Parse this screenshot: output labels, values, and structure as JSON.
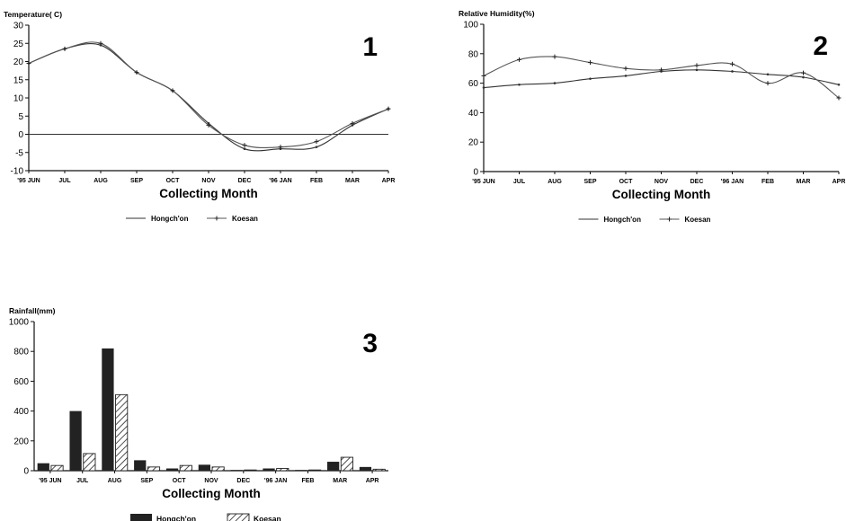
{
  "chart_data": [
    {
      "type": "line",
      "panel_number": "1",
      "title": "Temperature( C)",
      "xlabel": "Collecting Month",
      "ylabel": "",
      "x_ticks": [
        "'95 JUN",
        "JUL",
        "AUG",
        "SEP",
        "OCT",
        "NOV",
        "DEC",
        "'96 JAN",
        "FEB",
        "MAR",
        "APR"
      ],
      "y_ticks": [
        -10,
        -5,
        0,
        5,
        10,
        15,
        20,
        25,
        30
      ],
      "ylim": [
        -10,
        30
      ],
      "grid": false,
      "reference_line": 0,
      "legend_position": "bottom",
      "series": [
        {
          "name": "Hongch'on",
          "values": [
            19.5,
            23.5,
            24.5,
            17.0,
            12.0,
            3.0,
            -4.0,
            -4.0,
            -3.5,
            2.5,
            7.0
          ]
        },
        {
          "name": "Koesan",
          "values": [
            19.5,
            23.5,
            25.0,
            17.0,
            12.0,
            2.5,
            -3.0,
            -3.5,
            -2.0,
            3.0,
            7.0
          ]
        }
      ]
    },
    {
      "type": "line",
      "panel_number": "2",
      "title": "Relative Humidity(%)",
      "xlabel": "Collecting Month",
      "ylabel": "",
      "x_ticks": [
        "'95 JUN",
        "JUL",
        "AUG",
        "SEP",
        "OCT",
        "NOV",
        "DEC",
        "'96 JAN",
        "FEB",
        "MAR",
        "APR"
      ],
      "y_ticks": [
        0,
        20,
        40,
        60,
        80,
        100
      ],
      "ylim": [
        0,
        100
      ],
      "grid": false,
      "legend_position": "bottom",
      "series": [
        {
          "name": "Hongch'on",
          "values": [
            57,
            59,
            60,
            63,
            65,
            68,
            69,
            68,
            66,
            64,
            59
          ]
        },
        {
          "name": "Koesan",
          "values": [
            65,
            76,
            78,
            74,
            70,
            69,
            72,
            73,
            60,
            67,
            50
          ]
        }
      ]
    },
    {
      "type": "bar",
      "panel_number": "3",
      "title": "Rainfall(mm)",
      "xlabel": "Collecting Month",
      "ylabel": "",
      "categories": [
        "'95 JUN",
        "JUL",
        "AUG",
        "SEP",
        "OCT",
        "NOV",
        "DEC",
        "'96 JAN",
        "FEB",
        "MAR",
        "APR"
      ],
      "y_ticks": [
        0,
        200,
        400,
        600,
        800,
        1000
      ],
      "ylim": [
        0,
        1000
      ],
      "grid": false,
      "legend_position": "bottom",
      "series": [
        {
          "name": "Hongch'on",
          "values": [
            50,
            400,
            820,
            70,
            15,
            40,
            5,
            15,
            5,
            60,
            25
          ]
        },
        {
          "name": "Koesan",
          "values": [
            35,
            115,
            510,
            25,
            35,
            25,
            5,
            15,
            5,
            90,
            10
          ]
        }
      ]
    }
  ]
}
